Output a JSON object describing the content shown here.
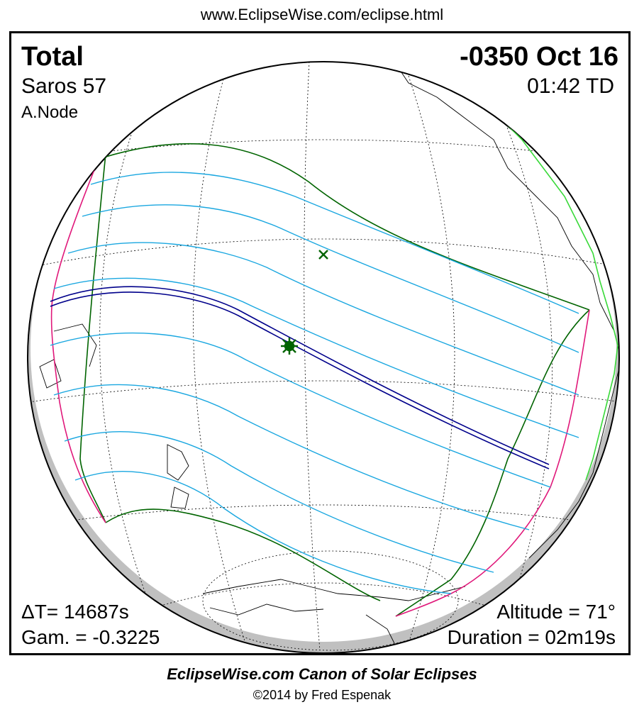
{
  "header": {
    "url": "www.EclipseWise.com/eclipse.html"
  },
  "eclipse": {
    "type": "Total",
    "date": "-0350 Oct 16",
    "saros": "Saros  57",
    "time": "01:42 TD",
    "node": "A.Node",
    "delta_t": "ΔT=  14687s",
    "gamma": "Gam. = -0.3225",
    "altitude": "Altitude = 71°",
    "duration": "Duration = 02m19s"
  },
  "colors": {
    "path_of_totality": "#00008b",
    "penumbra_limits": "#006400",
    "partial_lines": "#1aa7e0",
    "rise_set_curves": "#e0187a",
    "coastlines_sunlit": "#39d939",
    "night_shading": "#c0c0c0"
  },
  "icons": {
    "greatest_eclipse": "green-asterisk",
    "subsolar_point": "green-x"
  },
  "footer": {
    "title": "EclipseWise.com Canon of Solar Eclipses",
    "copyright": "©2014 by Fred Espenak"
  }
}
